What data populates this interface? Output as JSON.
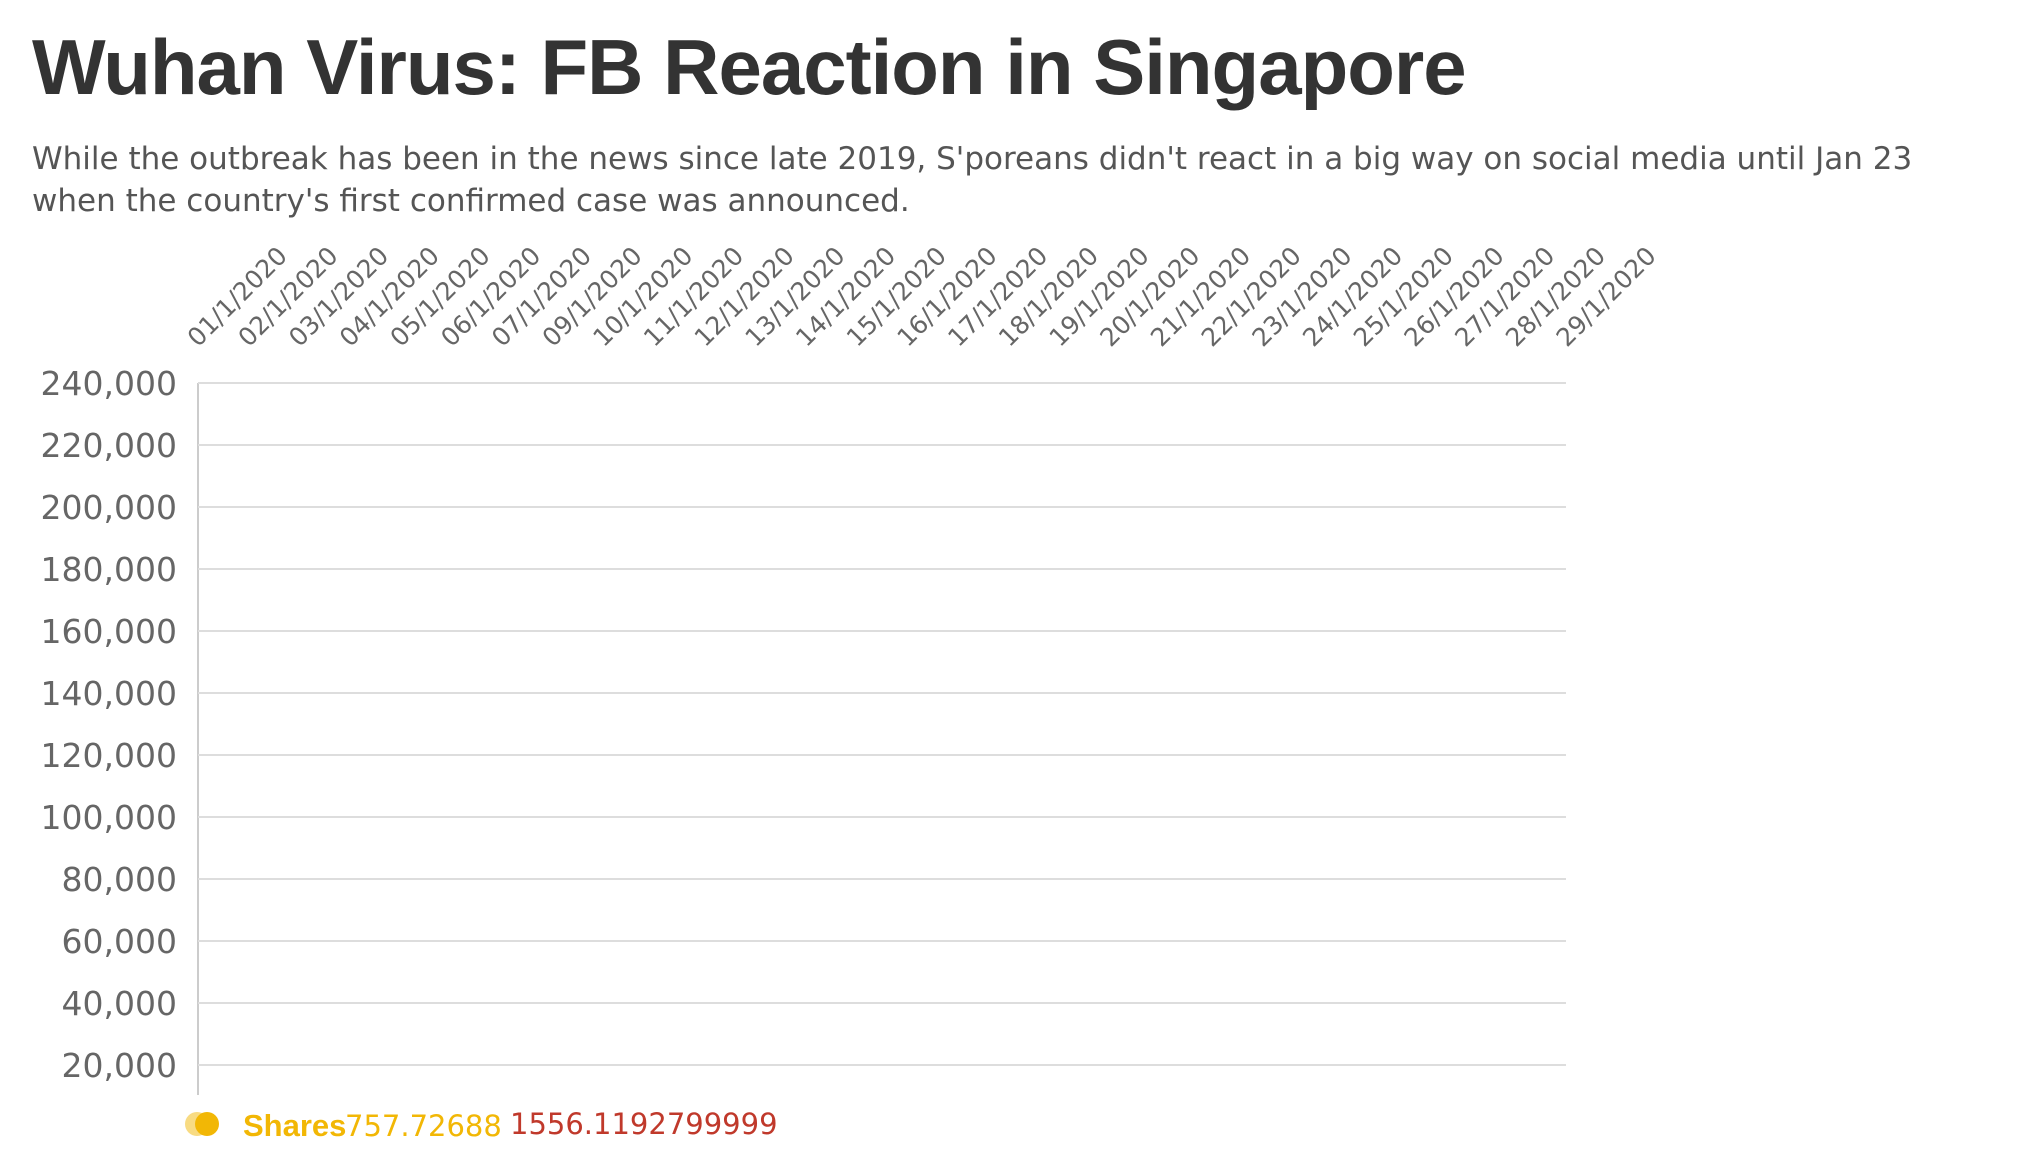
{
  "chart_data": {
    "type": "line",
    "title": "Wuhan Virus: FB Reaction in Singapore",
    "subtitle": "While the outbreak has been in the news since late 2019, S'poreans didn't react in a big way on social media until Jan 23 when the country's first confirmed case was announced.",
    "x": [
      "01/1/2020",
      "02/1/2020",
      "03/1/2020",
      "04/1/2020",
      "05/1/2020",
      "06/1/2020",
      "07/1/2020",
      "09/1/2020",
      "10/1/2020",
      "11/1/2020",
      "12/1/2020",
      "13/1/2020",
      "14/1/2020",
      "15/1/2020",
      "16/1/2020",
      "17/1/2020",
      "18/1/2020",
      "19/1/2020",
      "20/1/2020",
      "21/1/2020",
      "22/1/2020",
      "23/1/2020",
      "24/1/2020",
      "25/1/2020",
      "26/1/2020",
      "27/1/2020",
      "28/1/2020",
      "29/1/2020"
    ],
    "y_ticks": [
      "240,000",
      "220,000",
      "200,000",
      "180,000",
      "160,000",
      "140,000",
      "120,000",
      "100,000",
      "80,000",
      "60,000",
      "40,000",
      "20,000"
    ],
    "ylim": [
      0,
      240000
    ],
    "grid": true,
    "legend_position": "bottom-left",
    "legend": {
      "label": "Shares",
      "shares_value": "757.72688",
      "second_value": "1556.1192799999",
      "color_shares": "#f2b705",
      "color_second": "#c0392b"
    },
    "colors": {
      "grid": "#dddddd",
      "axis": "#cccccc",
      "tick_text": "#666666"
    }
  }
}
